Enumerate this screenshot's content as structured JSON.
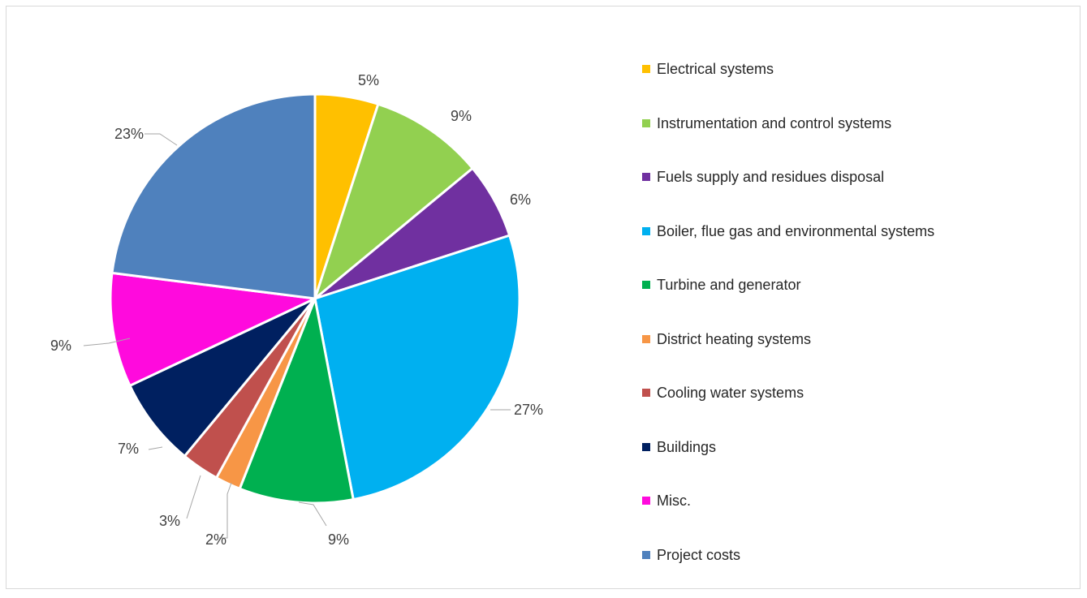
{
  "chart_data": {
    "type": "pie",
    "title": "",
    "legend_position": "right",
    "slices": [
      {
        "label": "Electrical systems",
        "value": 5,
        "value_label": "5%",
        "color": "#FFC000"
      },
      {
        "label": "Instrumentation and control systems",
        "value": 9,
        "value_label": "9%",
        "color": "#92D050"
      },
      {
        "label": "Fuels supply and residues disposal",
        "value": 6,
        "value_label": "6%",
        "color": "#7030A0"
      },
      {
        "label": "Boiler, flue gas and environmental systems",
        "value": 27,
        "value_label": "27%",
        "color": "#00B0F0"
      },
      {
        "label": "Turbine and generator",
        "value": 9,
        "value_label": "9%",
        "color": "#00B050"
      },
      {
        "label": "District heating systems",
        "value": 2,
        "value_label": "2%",
        "color": "#F79646"
      },
      {
        "label": "Cooling water systems",
        "value": 3,
        "value_label": "3%",
        "color": "#C0504D"
      },
      {
        "label": "Buildings",
        "value": 7,
        "value_label": "7%",
        "color": "#002060"
      },
      {
        "label": "Misc.",
        "value": 9,
        "value_label": "9%",
        "color": "#FF0ADD"
      },
      {
        "label": "Project costs",
        "value": 23,
        "value_label": "23%",
        "color": "#4F81BD"
      }
    ]
  }
}
